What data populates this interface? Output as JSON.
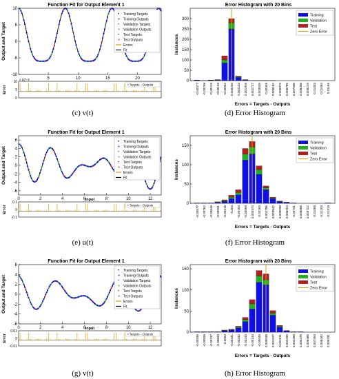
{
  "panels": [
    {
      "id": "c",
      "caption": "(c) v(t)",
      "chart_data": {
        "type": "line",
        "title": "Function Fit for Output Element 1",
        "ylabel": "Output and Target",
        "xlabel": "",
        "xlim": [
          0,
          24
        ],
        "ylim": [
          -10,
          10
        ],
        "xticks": [
          5,
          10,
          15,
          20
        ],
        "yticks": [
          -10,
          -5,
          0,
          5,
          10
        ],
        "fn": "c",
        "error_ylabel": "Error",
        "error_scale_label": "x 10^-3",
        "error_yticks": [
          0,
          5,
          10
        ],
        "legend": [
          "Training Targets",
          "Training Outputs",
          "Validation Targets",
          "Validation Outputs",
          "Test Targets",
          "Test Outputs",
          "Errors",
          "Fit"
        ],
        "error_legend": "Targets - Outputs"
      }
    },
    {
      "id": "d",
      "caption": "(d) Error Histogram",
      "chart_data": {
        "type": "bar",
        "title": "Error Histogram with 20 Bins",
        "ylabel": "Instances",
        "xlabel": "Errors = Targets - Outputs",
        "ylim": [
          0,
          350
        ],
        "yticks": [
          0,
          50,
          100,
          150,
          200,
          250,
          300
        ],
        "categories": [
          "-0.00377",
          "-0.00296",
          "-0.00215",
          "-0.00133",
          "-0.00052",
          "0.000293",
          "0.001104",
          "0.001916",
          "0.002727",
          "0.003539",
          "0.00435",
          "0.005162",
          "0.005973",
          "0.006785",
          "0.007596",
          "0.008408",
          "0.009219",
          "0.01003",
          "0.01084",
          "0.01165"
        ],
        "series": [
          {
            "name": "Training",
            "color": "#1010e0",
            "values": [
              2,
              1,
              1,
              3,
              85,
              250,
              15,
              3,
              1,
              1,
              1,
              1,
              0,
              0,
              0,
              0,
              0,
              0,
              0,
              0
            ]
          },
          {
            "name": "Validation",
            "color": "#20b020",
            "values": [
              1,
              0,
              1,
              1,
              15,
              30,
              4,
              1,
              0,
              0,
              0,
              0,
              0,
              0,
              0,
              0,
              0,
              0,
              0,
              0
            ]
          },
          {
            "name": "Test",
            "color": "#b02020",
            "values": [
              0,
              0,
              1,
              1,
              20,
              20,
              3,
              1,
              0,
              0,
              0,
              0,
              0,
              0,
              0,
              0,
              0,
              0,
              0,
              0
            ]
          }
        ],
        "zero_error_label": "Zero Error",
        "zero_error_index": 5
      }
    },
    {
      "id": "e",
      "caption": "(e) u(t)",
      "chart_data": {
        "type": "line",
        "title": "Function Fit for Output Element 1",
        "ylabel": "Output and Target",
        "xlabel": "Input",
        "xlim": [
          0,
          13
        ],
        "ylim": [
          -7,
          7
        ],
        "xticks": [
          0,
          2,
          4,
          6,
          8,
          10,
          12
        ],
        "yticks": [
          -6,
          -4,
          -2,
          0,
          2,
          4,
          6
        ],
        "fn": "e",
        "error_ylabel": "Error",
        "error_scale_label": "",
        "error_yticks": [
          -0.1,
          0,
          0.1
        ],
        "legend": [
          "Training Targets",
          "Training Outputs",
          "Validation Targets",
          "Validation Outputs",
          "Test Targets",
          "Test Outputs",
          "Errors",
          "Fit"
        ],
        "error_legend": "Targets - Outputs"
      }
    },
    {
      "id": "f",
      "caption": "(f) Error Histogram",
      "chart_data": {
        "type": "bar",
        "title": "Error Histogram with 20 Bins",
        "ylabel": "Instances",
        "xlabel": "Errors = Targets - Outputs",
        "ylim": [
          0,
          175
        ],
        "yticks": [
          0,
          50,
          100,
          150
        ],
        "categories": [
          "-0.00877",
          "-0.00762",
          "-0.00646",
          "-0.00531",
          "-0.00415",
          "-0.003",
          "-0.00184",
          "-0.00069",
          "0.000474",
          "0.00163",
          "0.002786",
          "0.003942",
          "0.005098",
          "0.006254",
          "0.00741",
          "0.008566",
          "0.009722",
          "0.01088",
          "0.01203",
          "0.01319"
        ],
        "series": [
          {
            "name": "Training",
            "color": "#1010e0",
            "values": [
              1,
              1,
              1,
              2,
              5,
              12,
              22,
              112,
              128,
              75,
              35,
              12,
              4,
              2,
              1,
              0,
              0,
              0,
              0,
              1
            ]
          },
          {
            "name": "Validation",
            "color": "#20b020",
            "values": [
              0,
              0,
              0,
              1,
              2,
              4,
              6,
              15,
              18,
              12,
              5,
              2,
              1,
              0,
              0,
              0,
              0,
              0,
              0,
              0
            ]
          },
          {
            "name": "Test",
            "color": "#b02020",
            "values": [
              0,
              0,
              0,
              1,
              2,
              5,
              7,
              15,
              14,
              10,
              5,
              2,
              1,
              1,
              0,
              0,
              0,
              0,
              0,
              0
            ]
          }
        ],
        "zero_error_label": "Zero Error",
        "zero_error_index": 8
      }
    },
    {
      "id": "g",
      "caption": "(g) v(t)",
      "chart_data": {
        "type": "line",
        "title": "Function Fit for Output Element 1",
        "ylabel": "Output and Target",
        "xlabel": "Input",
        "xlim": [
          0,
          13
        ],
        "ylim": [
          -6,
          6
        ],
        "xticks": [
          0,
          2,
          4,
          6,
          8,
          10,
          12
        ],
        "yticks": [
          -6,
          -4,
          -2,
          0,
          2,
          4,
          6
        ],
        "fn": "g",
        "error_ylabel": "Error",
        "error_scale_label": "",
        "error_yticks": [
          -0.01,
          0,
          0.01
        ],
        "legend": [
          "Training Targets",
          "Training Outputs",
          "Validation Targets",
          "Validation Outputs",
          "Test Targets",
          "Test Outputs",
          "Errors",
          "Fit"
        ],
        "error_legend": "Targets - Outputs"
      }
    },
    {
      "id": "h",
      "caption": "(h) Error Histogram",
      "chart_data": {
        "type": "bar",
        "title": "Error Histogram with 20 Bins",
        "ylabel": "Instances",
        "xlabel": "Errors = Targets - Outputs",
        "ylim": [
          0,
          160
        ],
        "yticks": [
          0,
          50,
          100,
          150
        ],
        "categories": [
          "-0.00935",
          "-0.00836",
          "-0.00737",
          "-0.00639",
          "-0.0054",
          "-0.00441",
          "-0.00342",
          "-0.00243",
          "-0.00144",
          "-0.00045",
          "0.000538",
          "0.001527",
          "0.002511",
          "0.003499",
          "0.004488",
          "0.005476",
          "0.006465",
          "0.007453",
          "0.008442",
          "0.009431"
        ],
        "series": [
          {
            "name": "Training",
            "color": "#1010e0",
            "values": [
              1,
              1,
              1,
              1,
              3,
              5,
              10,
              25,
              55,
              118,
              112,
              40,
              12,
              3,
              1,
              1,
              0,
              0,
              0,
              0
            ]
          },
          {
            "name": "Validation",
            "color": "#20b020",
            "values": [
              0,
              0,
              0,
              0,
              1,
              1,
              2,
              5,
              12,
              15,
              12,
              5,
              2,
              0,
              0,
              0,
              0,
              0,
              0,
              0
            ]
          },
          {
            "name": "Test",
            "color": "#b02020",
            "values": [
              0,
              0,
              0,
              0,
              1,
              1,
              2,
              5,
              10,
              13,
              14,
              6,
              2,
              1,
              0,
              0,
              0,
              0,
              0,
              0
            ]
          }
        ],
        "zero_error_label": "Zero Error",
        "zero_error_index": 10
      }
    }
  ]
}
